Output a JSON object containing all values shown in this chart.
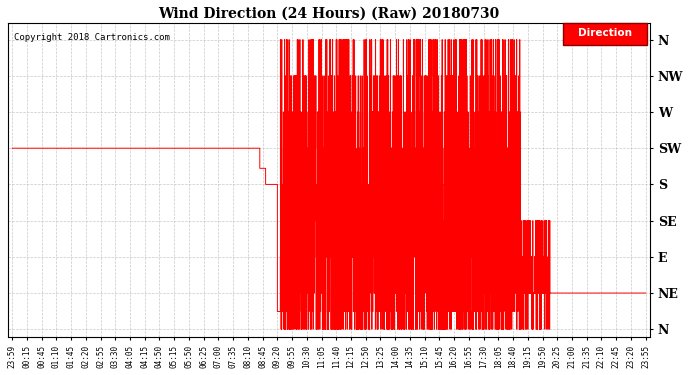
{
  "title": "Wind Direction (24 Hours) (Raw) 20180730",
  "copyright": "Copyright 2018 Cartronics.com",
  "legend_label": "Direction",
  "line_color": "#ff0000",
  "background_color": "#ffffff",
  "grid_color": "#bbbbbb",
  "ytick_labels": [
    "N",
    "NE",
    "E",
    "SE",
    "S",
    "SW",
    "W",
    "NW",
    "N"
  ],
  "ytick_values": [
    0,
    45,
    90,
    135,
    180,
    225,
    270,
    315,
    360
  ],
  "ylim": [
    -10,
    380
  ],
  "time_labels": [
    "23:59",
    "00:15",
    "00:45",
    "01:10",
    "01:45",
    "02:20",
    "02:55",
    "03:30",
    "04:05",
    "04:15",
    "04:50",
    "05:15",
    "05:50",
    "06:25",
    "07:00",
    "07:35",
    "08:10",
    "08:45",
    "09:20",
    "09:55",
    "10:30",
    "11:05",
    "11:40",
    "12:15",
    "12:50",
    "13:25",
    "14:00",
    "14:35",
    "15:10",
    "15:45",
    "16:20",
    "16:55",
    "17:30",
    "18:05",
    "18:40",
    "19:15",
    "19:50",
    "20:25",
    "21:00",
    "21:35",
    "22:10",
    "22:45",
    "23:20",
    "23:55"
  ],
  "figsize": [
    6.9,
    3.75
  ],
  "dpi": 100
}
